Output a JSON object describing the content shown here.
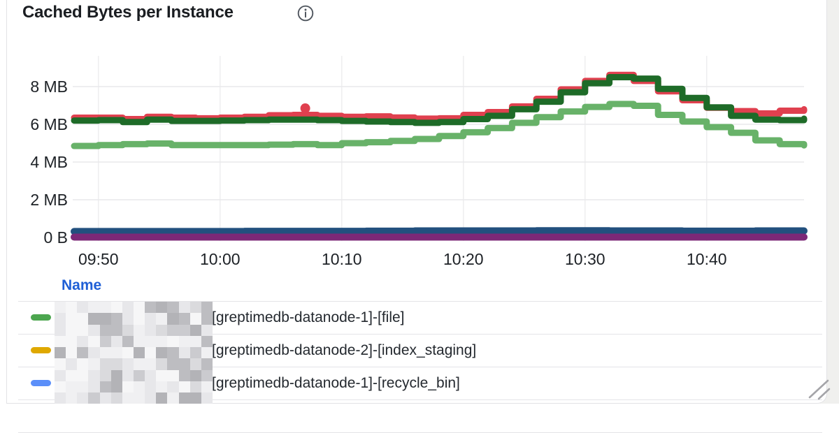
{
  "panel": {
    "title": "Cached Bytes per Instance",
    "icons": {
      "info": "info-circle-icon",
      "resize": "resize-handle-icon"
    }
  },
  "chart_data": {
    "type": "line",
    "title": "Cached Bytes per Instance",
    "xlabel": "",
    "ylabel": "",
    "grid": true,
    "legend_position": "bottom-table",
    "x_range": [
      "09:48",
      "10:48"
    ],
    "ylim_mb": [
      0,
      9.6
    ],
    "x_tick_labels": [
      "09:50",
      "10:00",
      "10:10",
      "10:20",
      "10:30",
      "10:40"
    ],
    "y_ticks": [
      {
        "label": "8 MB",
        "mb": 8
      },
      {
        "label": "6 MB",
        "mb": 6
      },
      {
        "label": "4 MB",
        "mb": 4
      },
      {
        "label": "2 MB",
        "mb": 2
      },
      {
        "label": "0 B",
        "mb": 0
      }
    ],
    "times": [
      "09:48",
      "09:50",
      "09:52",
      "09:54",
      "09:56",
      "09:58",
      "10:00",
      "10:02",
      "10:04",
      "10:06",
      "10:08",
      "10:10",
      "10:12",
      "10:14",
      "10:16",
      "10:18",
      "10:20",
      "10:22",
      "10:24",
      "10:26",
      "10:28",
      "10:30",
      "10:32",
      "10:34",
      "10:36",
      "10:38",
      "10:40",
      "10:42",
      "10:44",
      "10:46",
      "10:48"
    ],
    "unit": "MB",
    "series": [
      {
        "name": "series-red",
        "color": "#e0404f",
        "width": 9,
        "values": [
          6.35,
          6.35,
          6.28,
          6.4,
          6.35,
          6.32,
          6.35,
          6.4,
          6.48,
          6.5,
          6.45,
          6.4,
          6.42,
          6.36,
          6.3,
          6.32,
          6.5,
          6.65,
          6.95,
          7.35,
          7.85,
          8.3,
          8.62,
          8.3,
          7.75,
          7.28,
          6.88,
          6.7,
          6.58,
          6.72,
          6.8
        ]
      },
      {
        "name": "series-dark-green",
        "color": "#1e6b28",
        "width": 9,
        "values": [
          6.2,
          6.22,
          6.12,
          6.25,
          6.18,
          6.18,
          6.2,
          6.22,
          6.25,
          6.25,
          6.22,
          6.18,
          6.15,
          6.12,
          6.08,
          6.12,
          6.28,
          6.45,
          6.8,
          7.2,
          7.7,
          8.18,
          8.5,
          8.42,
          7.88,
          7.4,
          6.9,
          6.45,
          6.25,
          6.22,
          6.3
        ]
      },
      {
        "name": "series-light-green",
        "color": "#68b269",
        "width": 9,
        "values": [
          4.85,
          4.9,
          4.95,
          4.98,
          4.9,
          4.9,
          4.9,
          4.9,
          4.92,
          4.95,
          4.9,
          5.0,
          5.05,
          5.12,
          5.22,
          5.38,
          5.58,
          5.8,
          6.08,
          6.38,
          6.68,
          6.92,
          7.08,
          6.98,
          6.5,
          6.15,
          5.85,
          5.55,
          5.15,
          4.95,
          4.88
        ]
      },
      {
        "name": "series-navy-blue",
        "color": "#22507e",
        "width": 10,
        "values": [
          0.32,
          0.32,
          0.32,
          0.32,
          0.32,
          0.32,
          0.32,
          0.33,
          0.33,
          0.33,
          0.33,
          0.33,
          0.34,
          0.34,
          0.35,
          0.35,
          0.35,
          0.35,
          0.35,
          0.36,
          0.36,
          0.36,
          0.35,
          0.35,
          0.35,
          0.34,
          0.34,
          0.34,
          0.35,
          0.35,
          0.35
        ]
      },
      {
        "name": "series-purple",
        "color": "#7c2877",
        "width": 10,
        "values": [
          0.02,
          0.02,
          0.02,
          0.02,
          0.02,
          0.02,
          0.02,
          0.02,
          0.02,
          0.02,
          0.02,
          0.02,
          0.02,
          0.02,
          0.02,
          0.02,
          0.02,
          0.02,
          0.02,
          0.02,
          0.02,
          0.02,
          0.02,
          0.02,
          0.02,
          0.02,
          0.02,
          0.02,
          0.02,
          0.02,
          0.02
        ]
      }
    ],
    "outlier": {
      "series": "series-red",
      "time": "10:07",
      "value_mb": 6.85
    }
  },
  "legend": {
    "name_header": "Name",
    "rows": [
      {
        "color": "#4ca64f",
        "redacted_prefix": true,
        "label": "[greptimedb-datanode-1]-[file]"
      },
      {
        "color": "#dfa800",
        "redacted_prefix": true,
        "label": "[greptimedb-datanode-2]-[index_staging]"
      },
      {
        "color": "#5b8ff9",
        "redacted_prefix": true,
        "label": "[greptimedb-datanode-1]-[recycle_bin]"
      }
    ]
  }
}
